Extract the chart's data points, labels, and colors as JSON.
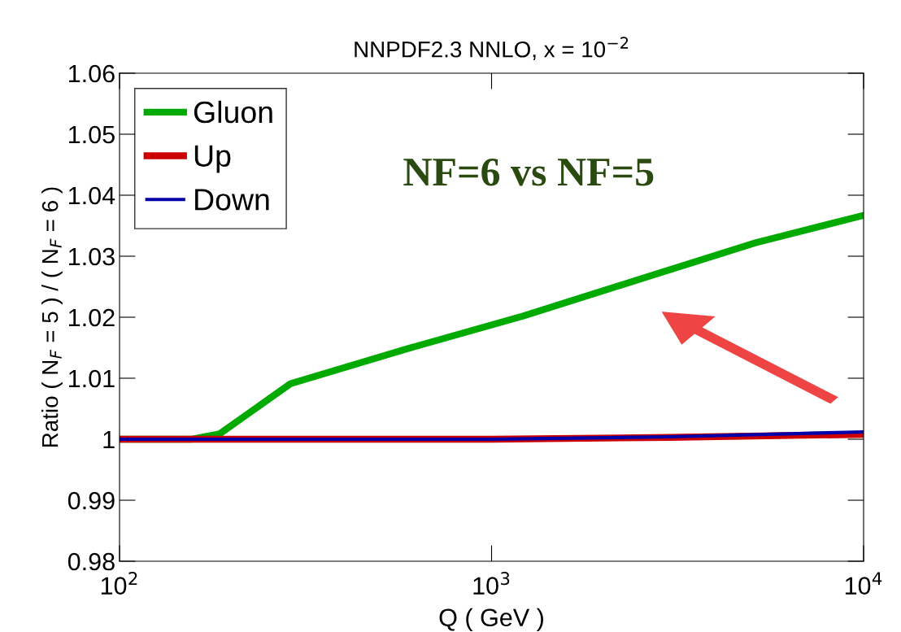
{
  "chart_data": {
    "type": "line",
    "title": "NNPDF2.3 NNLO, x = 10$^{−2}$",
    "xlabel": "Q ( GeV )",
    "ylabel": "Ratio ( N$_{F}$ = 5 ) / ( N$_{F}$ = 6 )",
    "log": "x",
    "xlim": [
      100,
      10000
    ],
    "xticks": [
      {
        "value": 100,
        "label": "10$^{2}$"
      },
      {
        "value": 1000,
        "label": "10$^{3}$"
      },
      {
        "value": 10000,
        "label": "10$^{4}$"
      }
    ],
    "ylim": [
      0.98,
      1.06
    ],
    "yticks": [
      {
        "value": 0.98,
        "label": "0.98"
      },
      {
        "value": 0.99,
        "label": "0.99"
      },
      {
        "value": 1.0,
        "label": "1"
      },
      {
        "value": 1.01,
        "label": "1.01"
      },
      {
        "value": 1.02,
        "label": "1.02"
      },
      {
        "value": 1.03,
        "label": "1.03"
      },
      {
        "value": 1.04,
        "label": "1.04"
      },
      {
        "value": 1.05,
        "label": "1.05"
      },
      {
        "value": 1.06,
        "label": "1.06"
      }
    ],
    "grid": false,
    "legend": "top left",
    "marker": "none",
    "line_style": "solid",
    "series": [
      {
        "name": "Gluon",
        "color": "#00aa00",
        "x": [
          100,
          156,
          186,
          288,
          591,
          1216,
          2492,
          5120,
          10000
        ],
        "values": [
          1.0,
          1.0,
          1.0009,
          1.0091,
          1.0148,
          1.0202,
          1.0262,
          1.0322,
          1.0367
        ]
      },
      {
        "name": "Up",
        "color": "#cc0000",
        "x": [
          100,
          1000,
          3000,
          10000
        ],
        "values": [
          1.0,
          1.0,
          1.0003,
          1.0008
        ]
      },
      {
        "name": "Down",
        "color": "#0000aa",
        "x": [
          100,
          1000,
          3000,
          10000
        ],
        "values": [
          1.0,
          1.0,
          1.0004,
          1.0012
        ]
      }
    ],
    "annotations": [
      {
        "text": "NF=6 vs NF=5"
      }
    ]
  }
}
